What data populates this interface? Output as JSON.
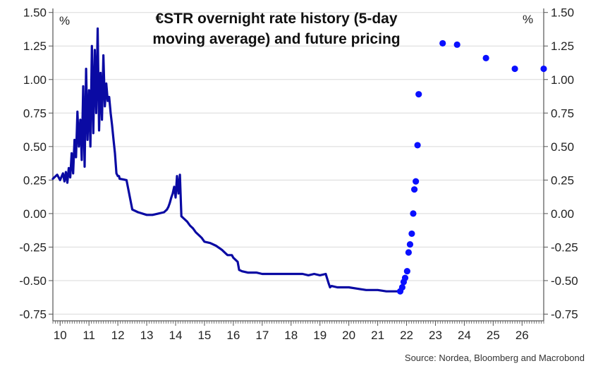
{
  "chart_data": {
    "type": "line",
    "title_lines": [
      "€STR overnight rate history (5-day",
      "moving average) and future pricing"
    ],
    "unit_left": "%",
    "unit_right": "%",
    "source": "Source: Nordea, Bloomberg and Macrobond",
    "ylim": [
      -0.8,
      1.5
    ],
    "y_ticks": [
      1.5,
      1.25,
      1.0,
      0.75,
      0.5,
      0.25,
      0.0,
      -0.25,
      -0.5,
      -0.75
    ],
    "y_tick_labels": [
      "1.50",
      "1.25",
      "1.00",
      "0.75",
      "0.50",
      "0.25",
      "0.00",
      "-0.25",
      "-0.50",
      "-0.75"
    ],
    "xlim": [
      2009.75,
      2026.75
    ],
    "x_ticks": [
      2010,
      2011,
      2012,
      2013,
      2014,
      2015,
      2016,
      2017,
      2018,
      2019,
      2020,
      2021,
      2022,
      2023,
      2024,
      2025,
      2026
    ],
    "x_tick_labels": [
      "10",
      "11",
      "12",
      "13",
      "14",
      "15",
      "16",
      "17",
      "18",
      "19",
      "20",
      "21",
      "22",
      "23",
      "24",
      "25",
      "26"
    ],
    "colors": {
      "history": "#0a0aa3",
      "futures": "#0a10ff",
      "grid": "#d9d9d9",
      "axis": "#555555"
    },
    "series": [
      {
        "name": "€STR 5-day moving average",
        "style": "line",
        "x": [
          2009.75,
          2009.9,
          2010.0,
          2010.1,
          2010.15,
          2010.2,
          2010.25,
          2010.3,
          2010.35,
          2010.4,
          2010.45,
          2010.5,
          2010.55,
          2010.6,
          2010.65,
          2010.7,
          2010.75,
          2010.8,
          2010.85,
          2010.9,
          2010.95,
          2011.0,
          2011.05,
          2011.1,
          2011.15,
          2011.2,
          2011.25,
          2011.3,
          2011.35,
          2011.4,
          2011.45,
          2011.5,
          2011.55,
          2011.6,
          2011.65,
          2011.7,
          2011.75,
          2011.8,
          2011.85,
          2011.9,
          2011.95,
          2012.0,
          2012.04,
          2012.06,
          2012.3,
          2012.5,
          2012.7,
          2013.0,
          2013.2,
          2013.4,
          2013.6,
          2013.7,
          2013.75,
          2013.8,
          2013.85,
          2013.9,
          2013.95,
          2014.0,
          2014.05,
          2014.1,
          2014.15,
          2014.2,
          2014.3,
          2014.4,
          2014.5,
          2014.6,
          2014.7,
          2014.8,
          2014.9,
          2015.0,
          2015.2,
          2015.4,
          2015.6,
          2015.75,
          2015.8,
          2015.95,
          2016.0,
          2016.15,
          2016.2,
          2016.3,
          2016.5,
          2016.8,
          2017.0,
          2017.3,
          2017.5,
          2017.8,
          2018.0,
          2018.2,
          2018.4,
          2018.6,
          2018.8,
          2019.0,
          2019.2,
          2019.3,
          2019.35,
          2019.4,
          2019.6,
          2019.8,
          2020.0,
          2020.3,
          2020.6,
          2021.0,
          2021.3,
          2021.6,
          2021.75
        ],
        "y": [
          0.26,
          0.29,
          0.25,
          0.3,
          0.24,
          0.31,
          0.23,
          0.34,
          0.27,
          0.45,
          0.3,
          0.55,
          0.42,
          0.76,
          0.5,
          0.7,
          0.4,
          0.95,
          0.35,
          1.08,
          0.55,
          0.92,
          0.5,
          1.25,
          0.6,
          1.22,
          0.75,
          1.38,
          0.62,
          1.05,
          0.7,
          1.18,
          0.8,
          0.97,
          0.84,
          0.87,
          0.75,
          0.66,
          0.55,
          0.45,
          0.3,
          0.28,
          0.28,
          0.26,
          0.25,
          0.03,
          0.01,
          -0.01,
          -0.01,
          0.0,
          0.01,
          0.03,
          0.05,
          0.08,
          0.12,
          0.15,
          0.2,
          0.12,
          0.28,
          0.15,
          0.29,
          -0.02,
          -0.04,
          -0.06,
          -0.09,
          -0.11,
          -0.14,
          -0.16,
          -0.18,
          -0.21,
          -0.22,
          -0.24,
          -0.27,
          -0.3,
          -0.31,
          -0.31,
          -0.33,
          -0.36,
          -0.42,
          -0.43,
          -0.44,
          -0.44,
          -0.45,
          -0.45,
          -0.45,
          -0.45,
          -0.45,
          -0.45,
          -0.45,
          -0.46,
          -0.45,
          -0.46,
          -0.45,
          -0.52,
          -0.55,
          -0.54,
          -0.55,
          -0.55,
          -0.55,
          -0.56,
          -0.57,
          -0.57,
          -0.58,
          -0.58,
          -0.58
        ]
      },
      {
        "name": "Future pricing",
        "style": "scatter",
        "x": [
          2021.78,
          2021.85,
          2021.9,
          2021.95,
          2022.02,
          2022.07,
          2022.12,
          2022.18,
          2022.23,
          2022.27,
          2022.32,
          2022.38,
          2022.42,
          2023.25,
          2023.75,
          2024.75,
          2025.75,
          2026.75
        ],
        "y": [
          -0.58,
          -0.55,
          -0.51,
          -0.48,
          -0.43,
          -0.29,
          -0.23,
          -0.15,
          0.0,
          0.18,
          0.24,
          0.51,
          0.89,
          1.27,
          1.26,
          1.16,
          1.08,
          1.08
        ]
      }
    ]
  }
}
